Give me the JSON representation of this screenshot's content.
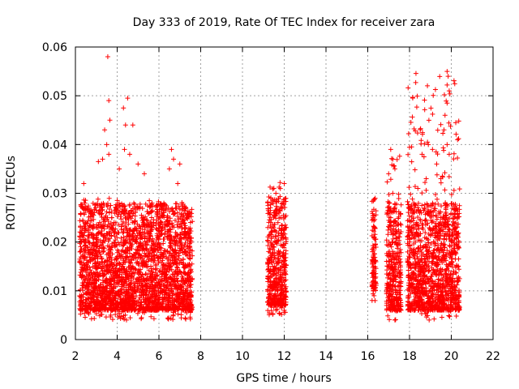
{
  "chart_data": {
    "type": "scatter",
    "title": "Day 333 of 2019, Rate Of TEC Index for receiver zara",
    "xlabel": "GPS time / hours",
    "ylabel": "ROTI / TECUs",
    "xlim": [
      2,
      22
    ],
    "ylim": [
      0,
      0.06
    ],
    "xticks": [
      2,
      4,
      6,
      8,
      10,
      12,
      14,
      16,
      18,
      20,
      22
    ],
    "yticks": [
      0,
      0.01,
      0.02,
      0.03,
      0.04,
      0.05,
      0.06
    ],
    "xtick_labels": [
      "2",
      "4",
      "6",
      "8",
      "10",
      "12",
      "14",
      "16",
      "18",
      "20",
      "22"
    ],
    "ytick_labels": [
      "0",
      "0.01",
      "0.02",
      "0.03",
      "0.04",
      "0.05",
      "0.06"
    ],
    "grid": true,
    "marker": "+",
    "color": "#ff0000",
    "series": [
      {
        "name": "ROTI",
        "clusters": [
          {
            "x_range": [
              2.2,
              7.6
            ],
            "typical_range": [
              0.004,
              0.029
            ]
          },
          {
            "x_range": [
              11.2,
              12.1
            ],
            "typical_range": [
              0.005,
              0.032
            ]
          },
          {
            "x_range": [
              16.2,
              16.4
            ],
            "typical_range": [
              0.008,
              0.029
            ]
          },
          {
            "x_range": [
              16.9,
              17.6
            ],
            "typical_range": [
              0.004,
              0.039
            ]
          },
          {
            "x_range": [
              17.9,
              20.4
            ],
            "typical_range": [
              0.004,
              0.055
            ]
          }
        ],
        "points": [
          [
            3.55,
            0.058
          ],
          [
            3.6,
            0.049
          ],
          [
            3.65,
            0.045
          ],
          [
            3.4,
            0.043
          ],
          [
            3.5,
            0.04
          ],
          [
            3.6,
            0.038
          ],
          [
            4.3,
            0.0475
          ],
          [
            4.5,
            0.0495
          ],
          [
            4.4,
            0.044
          ],
          [
            4.75,
            0.044
          ],
          [
            4.35,
            0.039
          ],
          [
            4.6,
            0.038
          ],
          [
            4.1,
            0.035
          ],
          [
            3.1,
            0.0365
          ],
          [
            3.3,
            0.037
          ],
          [
            2.4,
            0.032
          ],
          [
            2.6,
            0.027
          ],
          [
            2.5,
            0.024
          ],
          [
            5.0,
            0.036
          ],
          [
            5.3,
            0.034
          ],
          [
            6.6,
            0.039
          ],
          [
            6.7,
            0.037
          ],
          [
            7.0,
            0.036
          ],
          [
            6.9,
            0.032
          ],
          [
            6.5,
            0.035
          ],
          [
            11.8,
            0.0322
          ],
          [
            12.0,
            0.032
          ],
          [
            11.6,
            0.03
          ],
          [
            11.9,
            0.028
          ],
          [
            11.5,
            0.026
          ],
          [
            11.7,
            0.024
          ],
          [
            11.4,
            0.022
          ],
          [
            11.6,
            0.02
          ],
          [
            11.8,
            0.018
          ],
          [
            12.0,
            0.016
          ],
          [
            11.3,
            0.014
          ],
          [
            11.5,
            0.012
          ],
          [
            11.7,
            0.01
          ],
          [
            11.9,
            0.008
          ],
          [
            11.4,
            0.007
          ],
          [
            11.6,
            0.006
          ],
          [
            12.0,
            0.006
          ],
          [
            16.3,
            0.0287
          ],
          [
            16.25,
            0.025
          ],
          [
            16.3,
            0.021
          ],
          [
            16.35,
            0.016
          ],
          [
            16.3,
            0.012
          ],
          [
            16.25,
            0.011
          ],
          [
            16.3,
            0.009
          ],
          [
            16.35,
            0.008
          ],
          [
            17.1,
            0.039
          ],
          [
            17.2,
            0.037
          ],
          [
            17.3,
            0.035
          ],
          [
            17.0,
            0.034
          ],
          [
            17.2,
            0.03
          ],
          [
            17.3,
            0.027
          ],
          [
            17.1,
            0.025
          ],
          [
            17.4,
            0.022
          ],
          [
            17.2,
            0.02
          ],
          [
            17.3,
            0.017
          ],
          [
            17.0,
            0.015
          ],
          [
            17.2,
            0.012
          ],
          [
            17.4,
            0.01
          ],
          [
            17.1,
            0.007
          ],
          [
            17.3,
            0.004
          ],
          [
            19.8,
            0.055
          ],
          [
            19.85,
            0.054
          ],
          [
            19.9,
            0.051
          ],
          [
            19.8,
            0.0485
          ],
          [
            19.7,
            0.046
          ],
          [
            19.65,
            0.043
          ],
          [
            19.8,
            0.04
          ],
          [
            19.9,
            0.038
          ],
          [
            20.3,
            0.041
          ],
          [
            20.35,
            0.0412
          ],
          [
            18.9,
            0.04
          ],
          [
            19.1,
            0.039
          ],
          [
            18.6,
            0.038
          ],
          [
            18.8,
            0.033
          ],
          [
            18.4,
            0.031
          ],
          [
            18.2,
            0.028
          ],
          [
            18.1,
            0.023
          ],
          [
            18.0,
            0.02
          ],
          [
            19.3,
            0.036
          ],
          [
            19.5,
            0.033
          ]
        ]
      }
    ]
  }
}
